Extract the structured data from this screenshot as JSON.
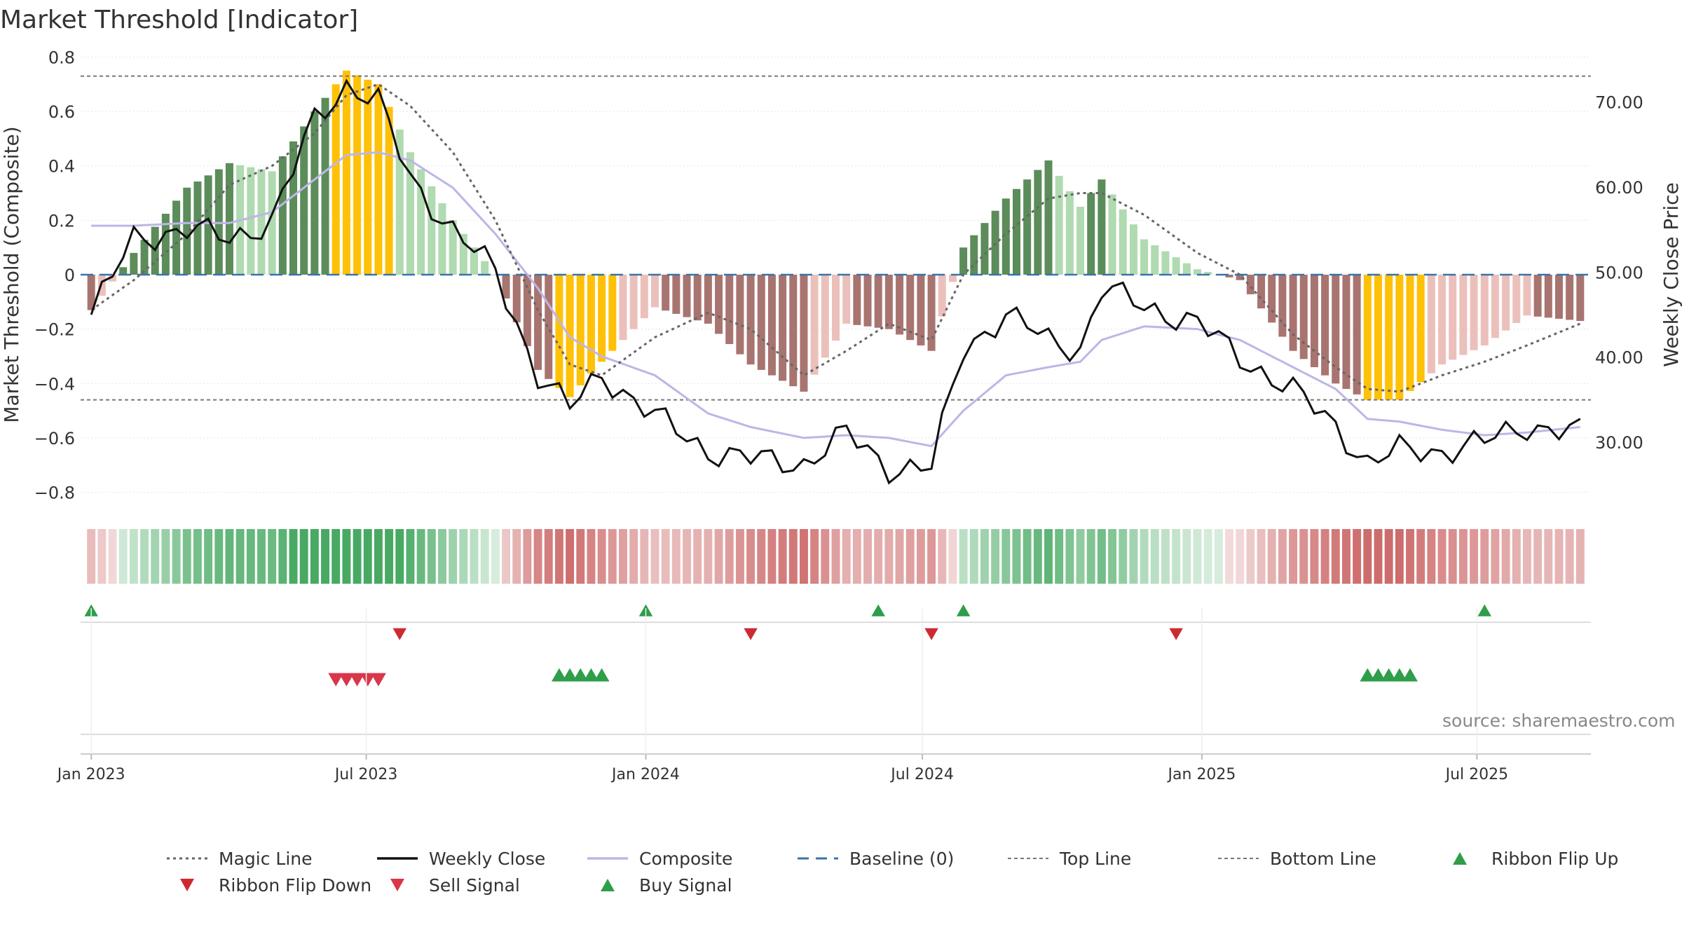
{
  "title": "Market Threshold [Indicator]",
  "source": "source: sharemaestro.com",
  "colors": {
    "bull_strong": "#5b8c5a",
    "bull_weak": "#b0dab0",
    "bear_strong": "#a87470",
    "bear_weak": "#ebc0bb",
    "extreme": "#ffc107",
    "close": "#111111",
    "composite": "#bdb6e6",
    "magic": "#666666",
    "baseline": "#3a73a6",
    "thresholds": "#777777",
    "buy": "#2e9e4a",
    "sell": "#d9364a"
  },
  "chart_data": {
    "type": "bar",
    "ylabel": "Market Threshold (Composite)",
    "y2label": "Weekly Close Price",
    "ylim": [
      -0.85,
      0.85
    ],
    "y2lim": [
      22.5,
      76.9
    ],
    "yticks": [
      "0.8",
      "0.6",
      "0.4",
      "0.2",
      "0",
      "−0.2",
      "−0.4",
      "−0.6",
      "−0.8"
    ],
    "y2ticks": [
      "70.00",
      "60.00",
      "50.00",
      "40.00",
      "30.00"
    ],
    "xticks": [
      "Jan 2023",
      "Jul 2023",
      "Jan 2024",
      "Jul 2024",
      "Jan 2025",
      "Jul 2025"
    ],
    "top_line": 0.73,
    "bottom_line": -0.46,
    "anchor_points": [
      {
        "date": "2023-01-01",
        "mt": -0.13,
        "close": 45,
        "comp": 0.18,
        "magic": -0.13
      },
      {
        "date": "2023-01-29",
        "mt": 0.08,
        "close": 54,
        "comp": 0.18,
        "magic": -0.02
      },
      {
        "date": "2023-03-05",
        "mt": 0.32,
        "close": 55,
        "comp": 0.19,
        "magic": 0.15
      },
      {
        "date": "2023-04-02",
        "mt": 0.41,
        "close": 54,
        "comp": 0.19,
        "magic": 0.33
      },
      {
        "date": "2023-04-30",
        "mt": 0.38,
        "close": 56,
        "comp": 0.23,
        "magic": 0.4
      },
      {
        "date": "2023-05-28",
        "mt": 0.6,
        "close": 68,
        "comp": 0.35,
        "magic": 0.52
      },
      {
        "date": "2023-06-18",
        "mt": 0.75,
        "close": 72,
        "comp": 0.44,
        "magic": 0.66
      },
      {
        "date": "2023-07-09",
        "mt": 0.7,
        "close": 70,
        "comp": 0.45,
        "magic": 0.7
      },
      {
        "date": "2023-07-30",
        "mt": 0.45,
        "close": 61,
        "comp": 0.42,
        "magic": 0.62
      },
      {
        "date": "2023-08-27",
        "mt": 0.2,
        "close": 55,
        "comp": 0.32,
        "magic": 0.45
      },
      {
        "date": "2023-09-24",
        "mt": 0.0,
        "close": 50,
        "comp": 0.15,
        "magic": 0.2
      },
      {
        "date": "2023-10-22",
        "mt": -0.35,
        "close": 38,
        "comp": -0.05,
        "magic": -0.13
      },
      {
        "date": "2023-11-12",
        "mt": -0.45,
        "close": 34,
        "comp": -0.23,
        "magic": -0.33
      },
      {
        "date": "2023-12-03",
        "mt": -0.32,
        "close": 38,
        "comp": -0.3,
        "magic": -0.37
      },
      {
        "date": "2024-01-07",
        "mt": -0.12,
        "close": 33,
        "comp": -0.37,
        "magic": -0.23
      },
      {
        "date": "2024-02-11",
        "mt": -0.18,
        "close": 29,
        "comp": -0.51,
        "magic": -0.14
      },
      {
        "date": "2024-03-10",
        "mt": -0.33,
        "close": 28,
        "comp": -0.56,
        "magic": -0.2
      },
      {
        "date": "2024-04-14",
        "mt": -0.43,
        "close": 27.5,
        "comp": -0.6,
        "magic": -0.37
      },
      {
        "date": "2024-05-12",
        "mt": -0.18,
        "close": 31,
        "comp": -0.59,
        "magic": -0.28
      },
      {
        "date": "2024-06-09",
        "mt": -0.2,
        "close": 27,
        "comp": -0.6,
        "magic": -0.18
      },
      {
        "date": "2024-07-07",
        "mt": -0.28,
        "close": 27,
        "comp": -0.63,
        "magic": -0.24
      },
      {
        "date": "2024-07-28",
        "mt": 0.1,
        "close": 41,
        "comp": -0.5,
        "magic": 0.0
      },
      {
        "date": "2024-08-25",
        "mt": 0.28,
        "close": 45,
        "comp": -0.37,
        "magic": 0.15
      },
      {
        "date": "2024-09-22",
        "mt": 0.42,
        "close": 42,
        "comp": -0.34,
        "magic": 0.28
      },
      {
        "date": "2024-10-13",
        "mt": 0.25,
        "close": 41,
        "comp": -0.32,
        "magic": 0.3
      },
      {
        "date": "2024-10-27",
        "mt": 0.35,
        "close": 48,
        "comp": -0.24,
        "magic": 0.3
      },
      {
        "date": "2024-11-24",
        "mt": 0.13,
        "close": 46,
        "comp": -0.19,
        "magic": 0.22
      },
      {
        "date": "2024-12-29",
        "mt": 0.02,
        "close": 44,
        "comp": -0.2,
        "magic": 0.08
      },
      {
        "date": "2025-01-26",
        "mt": -0.02,
        "close": 40,
        "comp": -0.24,
        "magic": 0.0
      },
      {
        "date": "2025-03-02",
        "mt": -0.28,
        "close": 36,
        "comp": -0.34,
        "magic": -0.22
      },
      {
        "date": "2025-03-30",
        "mt": -0.4,
        "close": 32,
        "comp": -0.42,
        "magic": -0.34
      },
      {
        "date": "2025-04-20",
        "mt": -0.46,
        "close": 27.5,
        "comp": -0.53,
        "magic": -0.42
      },
      {
        "date": "2025-05-11",
        "mt": -0.46,
        "close": 29,
        "comp": -0.54,
        "magic": -0.43
      },
      {
        "date": "2025-06-08",
        "mt": -0.33,
        "close": 29,
        "comp": -0.57,
        "magic": -0.37
      },
      {
        "date": "2025-07-06",
        "mt": -0.26,
        "close": 30,
        "comp": -0.59,
        "magic": -0.32
      },
      {
        "date": "2025-08-03",
        "mt": -0.15,
        "close": 32,
        "comp": -0.58,
        "magic": -0.26
      },
      {
        "date": "2025-09-07",
        "mt": -0.17,
        "close": 31,
        "comp": -0.56,
        "magic": -0.18
      }
    ],
    "extreme_periods": [
      [
        "2023-06-11",
        "2023-07-16"
      ],
      [
        "2023-11-05",
        "2023-12-10"
      ],
      [
        "2025-04-20",
        "2025-05-25"
      ]
    ],
    "ribbon_flip_up": [
      "2023-01-01",
      "2024-01-01",
      "2024-06-02",
      "2024-07-28",
      "2025-07-06"
    ],
    "ribbon_flip_down": [
      "2023-07-23",
      "2024-03-10",
      "2024-07-07",
      "2024-12-15"
    ],
    "sell_signals": [
      "2023-06-11",
      "2023-06-18",
      "2023-06-25",
      "2023-07-02",
      "2023-07-09"
    ],
    "buy_signals_1": [
      "2023-11-05",
      "2023-11-12",
      "2023-11-19",
      "2023-11-26",
      "2023-12-03"
    ],
    "buy_signals_2": [
      "2025-04-20",
      "2025-04-27",
      "2025-05-04",
      "2025-05-11",
      "2025-05-18"
    ]
  },
  "legend": [
    {
      "key": "magic",
      "label": "Magic Line",
      "icon": "dotted-line"
    },
    {
      "key": "close",
      "label": "Weekly Close",
      "icon": "solid-line"
    },
    {
      "key": "composite",
      "label": "Composite",
      "icon": "solid-line"
    },
    {
      "key": "baseline",
      "label": "Baseline (0)",
      "icon": "dashed-line"
    },
    {
      "key": "top",
      "label": "Top Line",
      "icon": "dashed-line"
    },
    {
      "key": "bottom",
      "label": "Bottom Line",
      "icon": "dashed-line"
    },
    {
      "key": "flip_up",
      "label": "Ribbon Flip Up",
      "icon": "triangle-up"
    },
    {
      "key": "flip_down",
      "label": "Ribbon Flip Down",
      "icon": "triangle-down"
    },
    {
      "key": "sell",
      "label": "Sell Signal",
      "icon": "triangle-down"
    },
    {
      "key": "buy",
      "label": "Buy Signal",
      "icon": "triangle-up"
    }
  ]
}
